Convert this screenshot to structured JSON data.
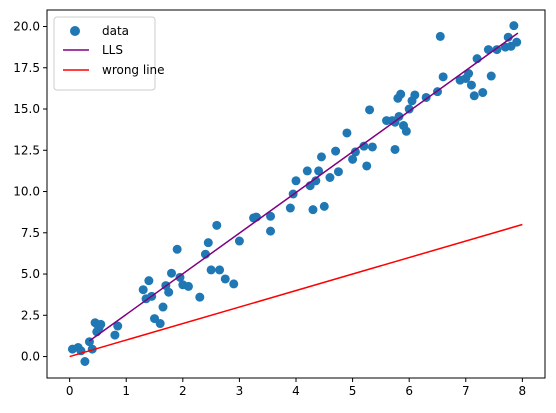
{
  "chart_data": {
    "type": "scatter",
    "title": "",
    "xlabel": "",
    "ylabel": "",
    "xlim": [
      -0.4,
      8.4
    ],
    "ylim": [
      -1.3,
      21.0
    ],
    "grid": false,
    "legend_position": "top-left",
    "x_ticks": [
      0,
      1,
      2,
      3,
      4,
      5,
      6,
      7,
      8
    ],
    "x_tick_labels": [
      "0",
      "1",
      "2",
      "3",
      "4",
      "5",
      "6",
      "7",
      "8"
    ],
    "y_ticks": [
      0.0,
      2.5,
      5.0,
      7.5,
      10.0,
      12.5,
      15.0,
      17.5,
      20.0
    ],
    "y_tick_labels": [
      "0.0",
      "2.5",
      "5.0",
      "7.5",
      "10.0",
      "12.5",
      "15.0",
      "17.5",
      "20.0"
    ],
    "series": [
      {
        "name": "data",
        "kind": "scatter",
        "color": "#1f77b4",
        "x": [
          0.05,
          0.15,
          0.2,
          0.27,
          0.35,
          0.4,
          0.45,
          0.48,
          0.52,
          0.5,
          0.55,
          0.8,
          0.85,
          1.3,
          1.35,
          1.4,
          1.45,
          1.5,
          1.6,
          1.65,
          1.7,
          1.75,
          1.8,
          1.95,
          1.9,
          2.0,
          2.1,
          2.3,
          2.4,
          2.45,
          2.5,
          2.6,
          2.65,
          2.75,
          2.9,
          3.0,
          3.25,
          3.3,
          3.55,
          3.55,
          3.9,
          3.95,
          4.0,
          4.2,
          4.25,
          4.3,
          4.35,
          4.4,
          4.45,
          4.5,
          4.6,
          4.7,
          4.75,
          4.9,
          5.0,
          5.05,
          5.2,
          5.25,
          5.3,
          5.35,
          5.6,
          5.7,
          5.75,
          5.75,
          5.8,
          5.82,
          5.85,
          5.9,
          5.95,
          6.0,
          6.05,
          6.1,
          6.3,
          6.5,
          6.55,
          6.6,
          6.9,
          7.0,
          7.05,
          7.1,
          7.15,
          7.2,
          7.3,
          7.4,
          7.45,
          7.55,
          7.7,
          7.75,
          7.8,
          7.85,
          7.9
        ],
        "y": [
          0.45,
          0.55,
          0.35,
          -0.3,
          0.9,
          0.45,
          2.05,
          1.5,
          1.75,
          1.9,
          1.95,
          1.3,
          1.85,
          4.05,
          3.5,
          4.6,
          3.65,
          2.3,
          2.0,
          3.0,
          4.3,
          3.9,
          5.05,
          4.8,
          6.5,
          4.35,
          4.25,
          3.6,
          6.2,
          6.9,
          5.25,
          7.95,
          5.25,
          4.7,
          4.4,
          7.0,
          8.4,
          8.45,
          7.6,
          8.5,
          9.0,
          9.85,
          10.65,
          11.25,
          10.35,
          8.9,
          10.65,
          11.25,
          12.1,
          9.1,
          10.85,
          12.45,
          11.2,
          13.55,
          11.95,
          12.4,
          12.75,
          11.55,
          14.95,
          12.7,
          14.3,
          14.3,
          14.2,
          12.55,
          15.65,
          14.55,
          15.9,
          14.0,
          13.65,
          15.0,
          15.5,
          15.85,
          15.7,
          16.05,
          19.4,
          16.95,
          16.75,
          16.85,
          17.15,
          16.45,
          15.8,
          18.05,
          16.0,
          18.6,
          17.0,
          18.6,
          18.75,
          19.35,
          18.8,
          20.05,
          19.05
        ]
      },
      {
        "name": "LLS",
        "kind": "line",
        "color": "#800080",
        "x": [
          0.35,
          7.92
        ],
        "y": [
          0.95,
          19.6
        ]
      },
      {
        "name": "wrong line",
        "kind": "line",
        "color": "#ff0000",
        "x": [
          0.0,
          8.0
        ],
        "y": [
          0.0,
          8.0
        ]
      }
    ]
  }
}
